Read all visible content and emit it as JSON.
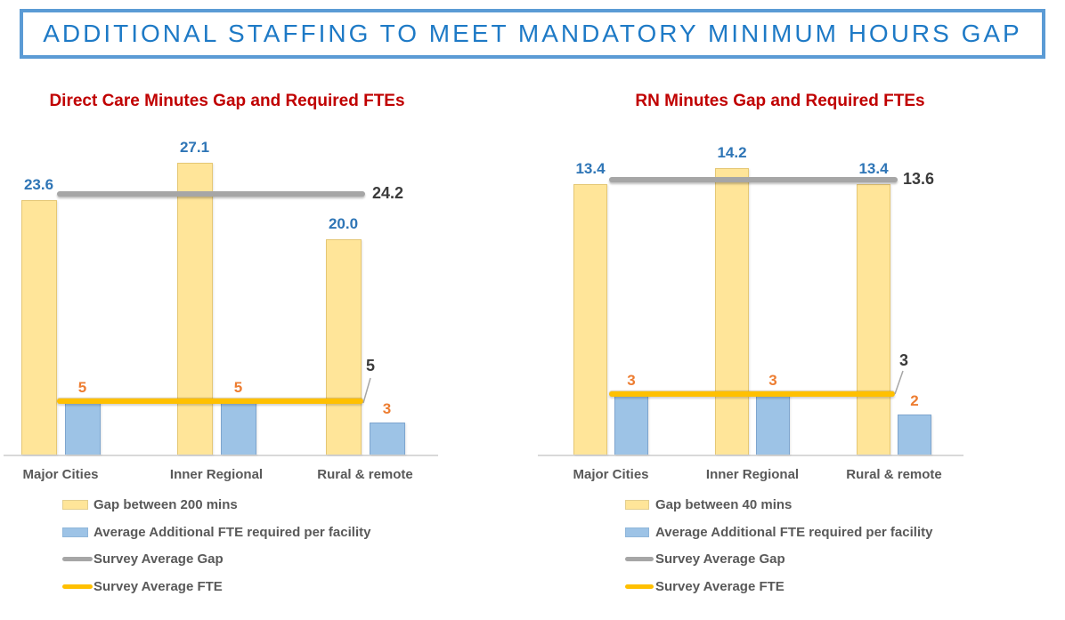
{
  "banner": {
    "title": "ADDITIONAL STAFFING TO MEET MANDATORY MINIMUM HOURS GAP"
  },
  "colors": {
    "banner_border": "#5B9BD5",
    "banner_text": "#1E7AC6",
    "chart_title_red": "#C00000",
    "bar_yellow": "#FFE599",
    "bar_blue": "#9DC3E6",
    "line_gray": "#A6A6A6",
    "line_gold": "#FFC000",
    "value_label_blue": "#2E75B6",
    "value_label_orange": "#ED7D31",
    "value_label_dark": "#3B3B3B",
    "axis_text_gray": "#595959",
    "axis_line_gray": "#D9D9D9"
  },
  "chart_data": [
    {
      "type": "bar",
      "title": "Direct Care Minutes Gap and Required FTEs",
      "categories": [
        "Major Cities",
        "Inner Regional",
        "Rural & remote"
      ],
      "series": [
        {
          "name": "Gap between 200 mins",
          "kind": "bar",
          "values": [
            23.6,
            27.1,
            20.0
          ],
          "labels": [
            "23.6",
            "27.1",
            "20.0"
          ]
        },
        {
          "name": "Average Additional FTE required per facility",
          "kind": "bar",
          "values": [
            5,
            5,
            3
          ],
          "labels": [
            "5",
            "5",
            "3"
          ]
        },
        {
          "name": "Survey Average Gap",
          "kind": "line",
          "value": 24.2,
          "label": "24.2"
        },
        {
          "name": "Survey Average FTE",
          "kind": "line",
          "value": 5,
          "label": "5"
        }
      ],
      "ylim": [
        0,
        30
      ],
      "grid": false,
      "legend_position": "bottom-left"
    },
    {
      "type": "bar",
      "title": "RN Minutes Gap and Required FTEs",
      "categories": [
        "Major Cities",
        "Inner Regional",
        "Rural & remote"
      ],
      "series": [
        {
          "name": "Gap between 40 mins",
          "kind": "bar",
          "values": [
            13.4,
            14.2,
            13.4
          ],
          "labels": [
            "13.4",
            "14.2",
            "13.4"
          ]
        },
        {
          "name": "Average Additional FTE required per facility",
          "kind": "bar",
          "values": [
            3,
            3,
            2
          ],
          "labels": [
            "3",
            "3",
            "2"
          ]
        },
        {
          "name": "Survey Average Gap",
          "kind": "line",
          "value": 13.6,
          "label": "13.6"
        },
        {
          "name": "Survey Average FTE",
          "kind": "line",
          "value": 3,
          "label": "3"
        }
      ],
      "ylim": [
        0,
        15
      ],
      "grid": false,
      "legend_position": "bottom-left"
    }
  ]
}
